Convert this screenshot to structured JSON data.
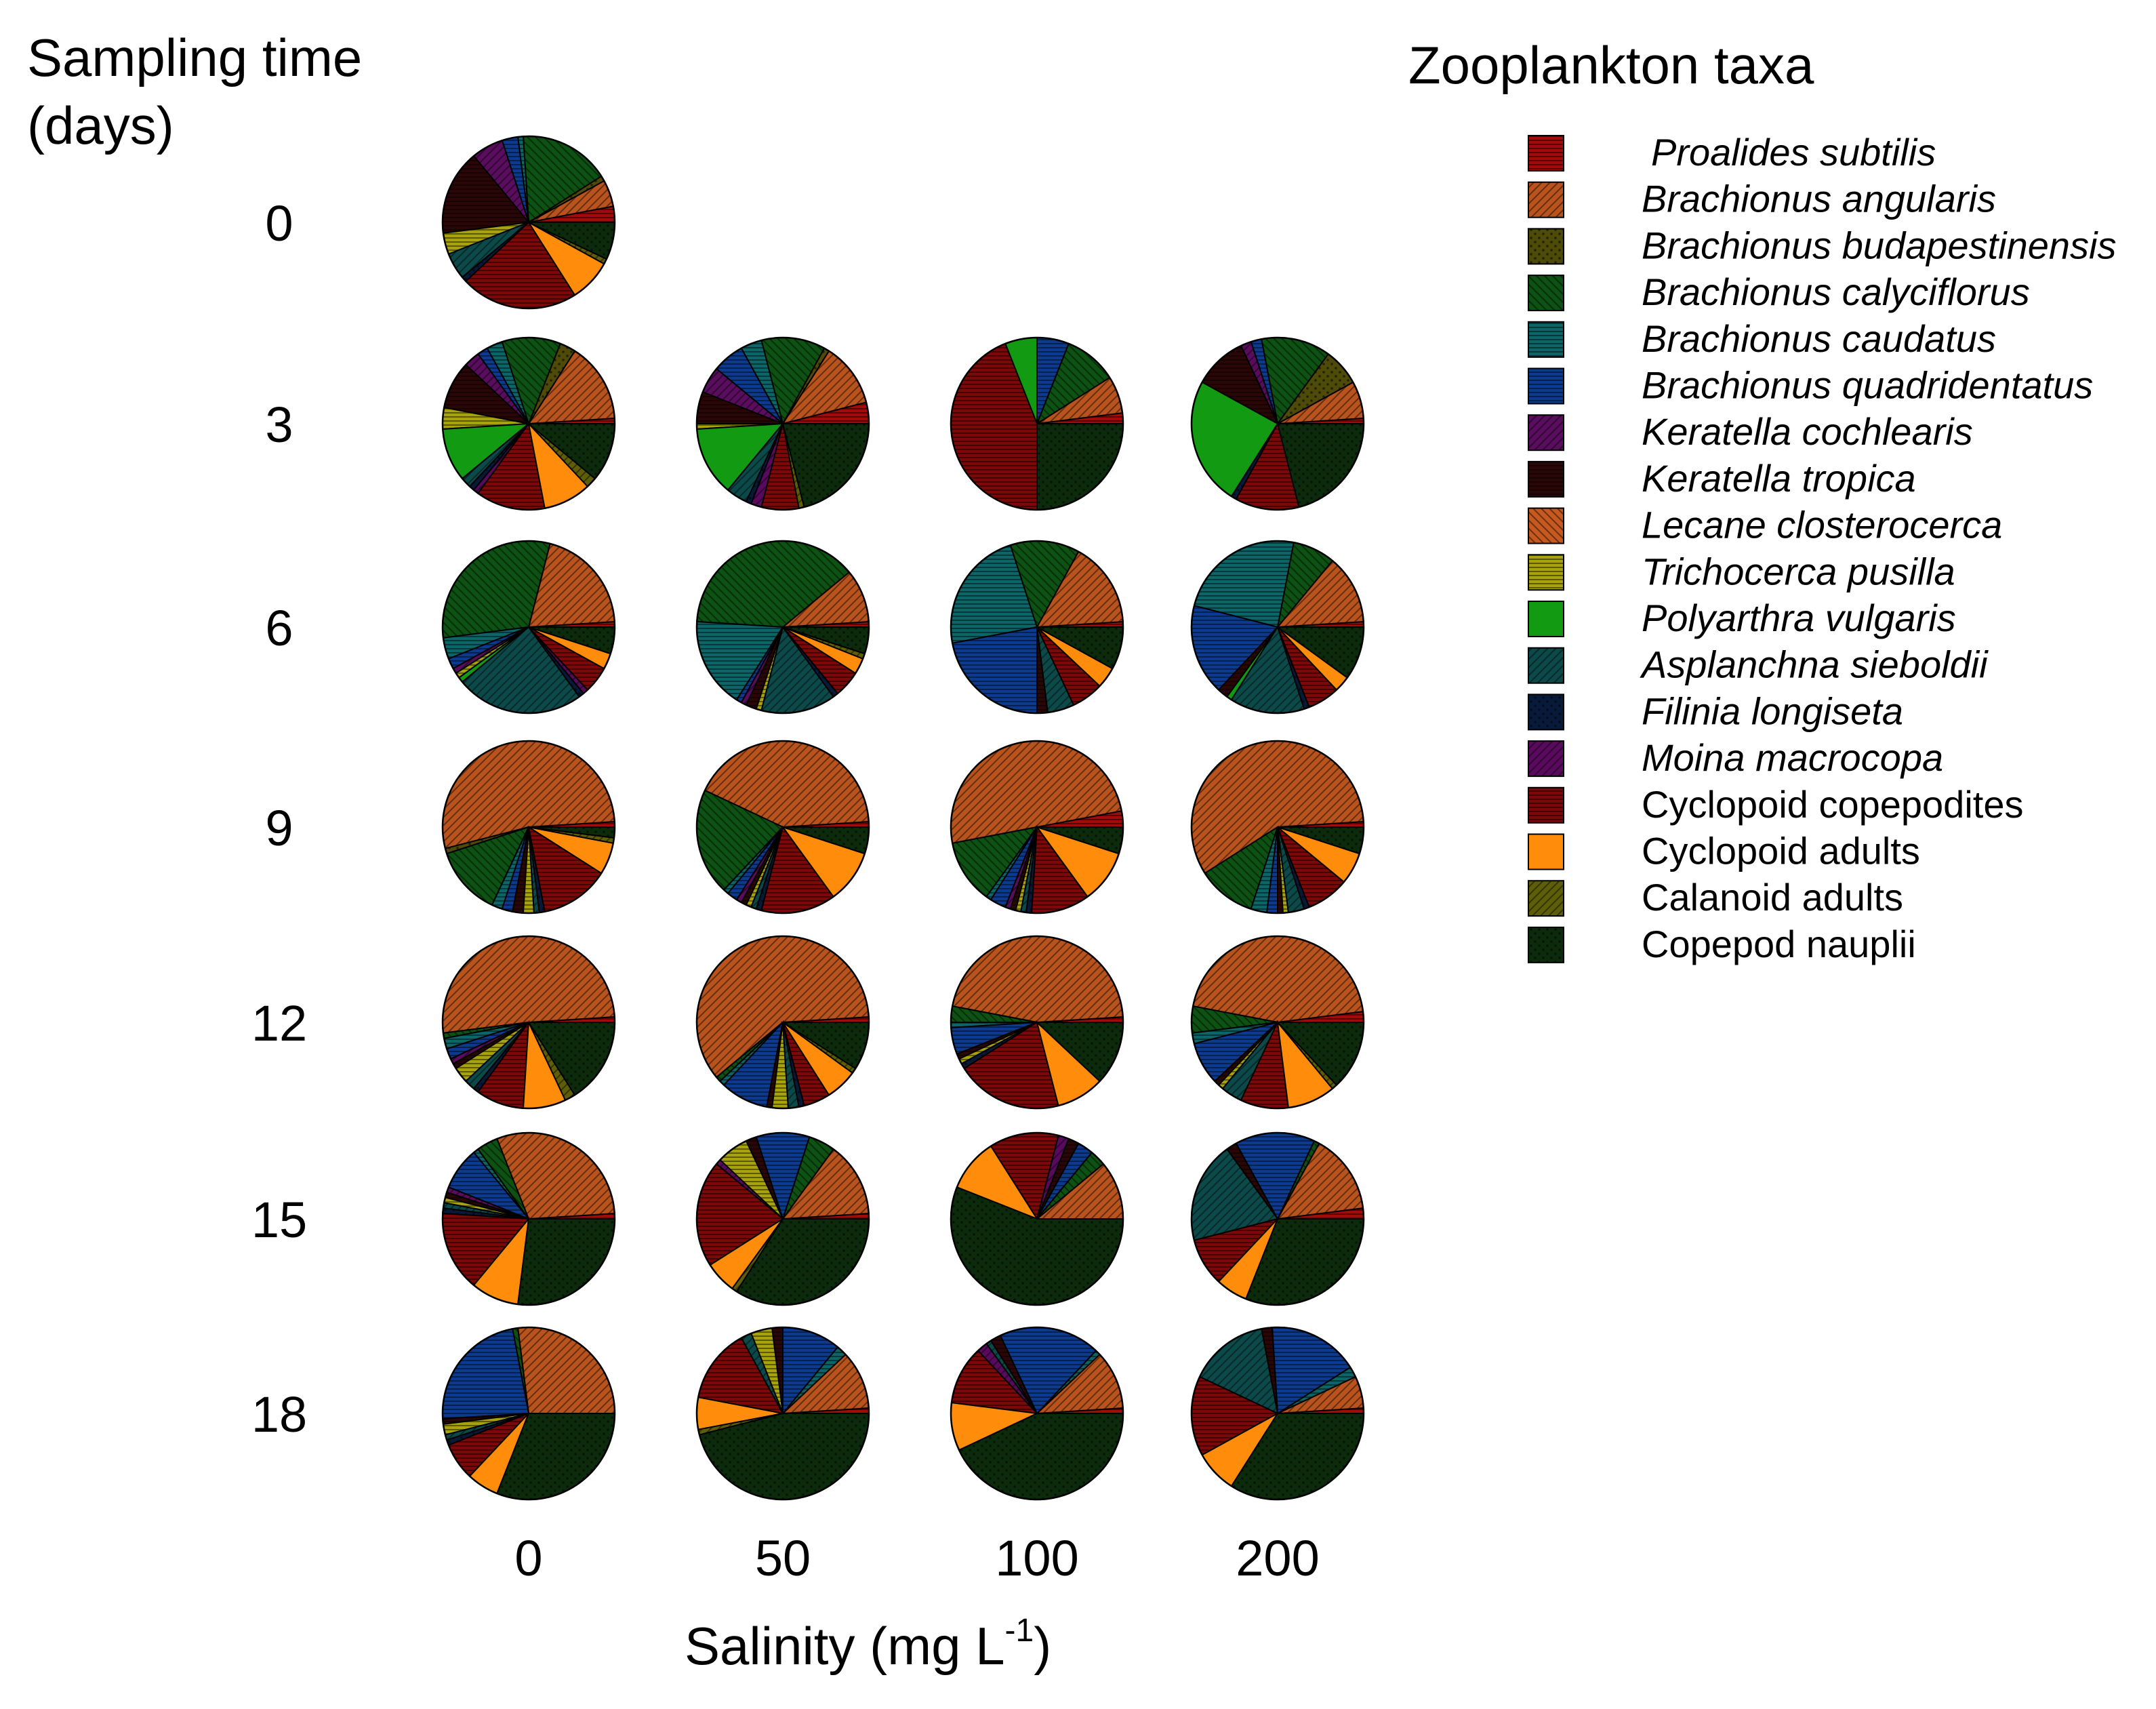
{
  "colors": {
    "proalides": "#a30a0a",
    "b_angularis": "#b9531d",
    "b_budapestinensis": "#4e4a08",
    "b_calyciflorus": "#0d5213",
    "b_caudatus": "#0c6566",
    "b_quadridentatus": "#0b3a8f",
    "k_cochlearis": "#5a0d5e",
    "k_tropica": "#2a0606",
    "lecane": "#c6591f",
    "trichocerca": "#a8a20c",
    "polyarthra": "#129a12",
    "asplanchna": "#0c4a4a",
    "filinia": "#081a3a",
    "moina": "#5a0a5e",
    "cyc_copepodites": "#7c0808",
    "cyc_adults": "#ff8c0a",
    "calanoid": "#5e5e08",
    "nauplii": "#0c2a0c"
  },
  "chart_data": {
    "type": "pie",
    "title": "",
    "y_header": "Sampling time\n(days)",
    "y_header_lines": [
      "Sampling time",
      "(days)"
    ],
    "xlabel_main": "Salinity (mg L",
    "xlabel_sup": "-1",
    "xlabel_end": ")",
    "salinity_levels": [
      "0",
      "50",
      "100",
      "200"
    ],
    "sampling_times": [
      "0",
      "3",
      "6",
      "9",
      "12",
      "15",
      "18"
    ],
    "legend_title": "Zooplankton taxa",
    "taxa": [
      {
        "key": "proalides",
        "label": "Proalides subtilis",
        "italic": true
      },
      {
        "key": "b_angularis",
        "label": "Brachionus angularis",
        "italic": true
      },
      {
        "key": "b_budapestinensis",
        "label": "Brachionus budapestinensis",
        "italic": true
      },
      {
        "key": "b_calyciflorus",
        "label": "Brachionus calyciflorus",
        "italic": true
      },
      {
        "key": "b_caudatus",
        "label": "Brachionus caudatus",
        "italic": true
      },
      {
        "key": "b_quadridentatus",
        "label": "Brachionus quadridentatus",
        "italic": true
      },
      {
        "key": "k_cochlearis",
        "label": "Keratella cochlearis",
        "italic": true
      },
      {
        "key": "k_tropica",
        "label": "Keratella tropica",
        "italic": true
      },
      {
        "key": "lecane",
        "label": "Lecane closterocerca",
        "italic": true
      },
      {
        "key": "trichocerca",
        "label": "Trichocerca pusilla",
        "italic": true
      },
      {
        "key": "polyarthra",
        "label": "Polyarthra vulgaris",
        "italic": true
      },
      {
        "key": "asplanchna",
        "label": "Asplanchna sieboldii",
        "italic": true
      },
      {
        "key": "filinia",
        "label": "Filinia longiseta",
        "italic": true
      },
      {
        "key": "moina",
        "label": "Moina macrocopa",
        "italic": true
      },
      {
        "key": "cyc_copepodites",
        "label": "Cyclopoid copepodites",
        "italic": false
      },
      {
        "key": "cyc_adults",
        "label": "Cyclopoid adults",
        "italic": false
      },
      {
        "key": "calanoid",
        "label": "Calanoid adults",
        "italic": false
      },
      {
        "key": "nauplii",
        "label": "Copepod nauplii",
        "italic": false
      }
    ],
    "taxa_order_comment": "pie values listed in legend order (percent of total zooplankton)",
    "pies": [
      {
        "time": "0",
        "salinity": "0",
        "values": [
          3,
          5,
          1,
          17,
          1,
          3,
          6,
          16,
          0,
          4,
          0,
          5,
          1,
          0,
          22,
          8,
          1,
          7
        ]
      },
      {
        "time": "3",
        "salinity": "0",
        "values": [
          1,
          15,
          3,
          11,
          3,
          2,
          3,
          9,
          0,
          4,
          10,
          2,
          1,
          1,
          13,
          9,
          2,
          11
        ]
      },
      {
        "time": "3",
        "salinity": "50",
        "values": [
          4,
          12,
          1,
          12,
          4,
          6,
          5,
          6,
          0,
          1,
          13,
          4,
          1,
          2,
          7,
          0,
          1,
          21
        ]
      },
      {
        "time": "3",
        "salinity": "100",
        "values": [
          2,
          7,
          0,
          10,
          0,
          6,
          0,
          0,
          0,
          0,
          6,
          0,
          0,
          0,
          44,
          0,
          0,
          25
        ]
      },
      {
        "time": "3",
        "salinity": "200",
        "values": [
          1,
          7,
          7,
          13,
          0,
          2,
          2,
          10,
          0,
          0,
          24,
          0,
          1,
          0,
          12,
          0,
          0,
          21
        ]
      },
      {
        "time": "6",
        "salinity": "0",
        "values": [
          1,
          20,
          0,
          31,
          4,
          2,
          1,
          0,
          0,
          1,
          1,
          24,
          1,
          1,
          5,
          3,
          0,
          5
        ]
      },
      {
        "time": "6",
        "salinity": "50",
        "values": [
          1,
          10,
          0,
          38,
          17,
          1,
          1,
          2,
          0,
          1,
          0,
          14,
          1,
          0,
          5,
          3,
          1,
          5
        ]
      },
      {
        "time": "6",
        "salinity": "100",
        "values": [
          1,
          16,
          0,
          13,
          23,
          22,
          0,
          2,
          0,
          0,
          0,
          5,
          0,
          0,
          6,
          4,
          0,
          8
        ]
      },
      {
        "time": "6",
        "salinity": "200",
        "values": [
          1,
          13,
          0,
          8,
          24,
          17,
          0,
          2,
          0,
          0,
          1,
          14,
          1,
          0,
          6,
          3,
          0,
          10
        ]
      },
      {
        "time": "9",
        "salinity": "0",
        "values": [
          1,
          53,
          1,
          13,
          2,
          2,
          0,
          2,
          0,
          2,
          0,
          1,
          1,
          0,
          13,
          6,
          1,
          2
        ]
      },
      {
        "time": "9",
        "salinity": "50",
        "values": [
          1,
          42,
          0,
          20,
          1,
          2,
          1,
          1,
          0,
          1,
          0,
          1,
          1,
          0,
          14,
          10,
          0,
          5
        ]
      },
      {
        "time": "9",
        "salinity": "100",
        "values": [
          3,
          50,
          0,
          12,
          1,
          3,
          1,
          1,
          0,
          1,
          0,
          1,
          1,
          0,
          11,
          10,
          0,
          5
        ]
      },
      {
        "time": "9",
        "salinity": "200",
        "values": [
          1,
          58,
          0,
          11,
          3,
          2,
          0,
          1,
          0,
          1,
          0,
          3,
          1,
          0,
          8,
          6,
          0,
          5
        ]
      },
      {
        "time": "12",
        "salinity": "0",
        "values": [
          1,
          51,
          0,
          1,
          2,
          2,
          1,
          1,
          0,
          3,
          0,
          2,
          1,
          0,
          9,
          8,
          2,
          16
        ]
      },
      {
        "time": "12",
        "salinity": "50",
        "values": [
          1,
          60,
          0,
          1,
          1,
          9,
          0,
          1,
          0,
          3,
          0,
          2,
          1,
          0,
          5,
          6,
          1,
          9
        ]
      },
      {
        "time": "12",
        "salinity": "100",
        "values": [
          1,
          46,
          0,
          3,
          1,
          5,
          0,
          1,
          0,
          1,
          0,
          0,
          1,
          0,
          20,
          9,
          0,
          12
        ]
      },
      {
        "time": "12",
        "salinity": "200",
        "values": [
          2,
          45,
          0,
          5,
          2,
          8,
          0,
          1,
          0,
          1,
          0,
          4,
          0,
          0,
          9,
          9,
          1,
          13
        ]
      },
      {
        "time": "15",
        "salinity": "0",
        "values": [
          1,
          30,
          0,
          4,
          1,
          8,
          1,
          1,
          0,
          1,
          0,
          1,
          1,
          0,
          15,
          9,
          0,
          27
        ]
      },
      {
        "time": "15",
        "salinity": "50",
        "values": [
          1,
          14,
          0,
          5,
          0,
          10,
          0,
          2,
          0,
          6,
          0,
          0,
          0,
          1,
          20,
          6,
          1,
          34
        ]
      },
      {
        "time": "15",
        "salinity": "100",
        "values": [
          0,
          11,
          0,
          3,
          0,
          3,
          0,
          2,
          0,
          0,
          0,
          0,
          0,
          2,
          13,
          10,
          0,
          56
        ]
      },
      {
        "time": "15",
        "salinity": "200",
        "values": [
          2,
          15,
          0,
          1,
          0,
          15,
          0,
          2,
          0,
          0,
          0,
          19,
          0,
          0,
          9,
          6,
          0,
          31
        ]
      },
      {
        "time": "18",
        "salinity": "0",
        "values": [
          0,
          27,
          0,
          1,
          0,
          23,
          0,
          1,
          0,
          2,
          0,
          1,
          1,
          0,
          7,
          6,
          0,
          31
        ]
      },
      {
        "time": "18",
        "salinity": "50",
        "values": [
          1,
          11,
          0,
          0,
          2,
          11,
          0,
          2,
          0,
          4,
          0,
          2,
          0,
          0,
          14,
          6,
          1,
          46
        ]
      },
      {
        "time": "18",
        "salinity": "100",
        "values": [
          1,
          11,
          0,
          0,
          1,
          19,
          0,
          2,
          0,
          0,
          0,
          1,
          0,
          2,
          11,
          9,
          0,
          43
        ]
      },
      {
        "time": "18",
        "salinity": "200",
        "values": [
          1,
          6,
          0,
          0,
          2,
          17,
          0,
          2,
          0,
          0,
          0,
          15,
          0,
          0,
          15,
          8,
          0,
          34
        ]
      }
    ]
  }
}
